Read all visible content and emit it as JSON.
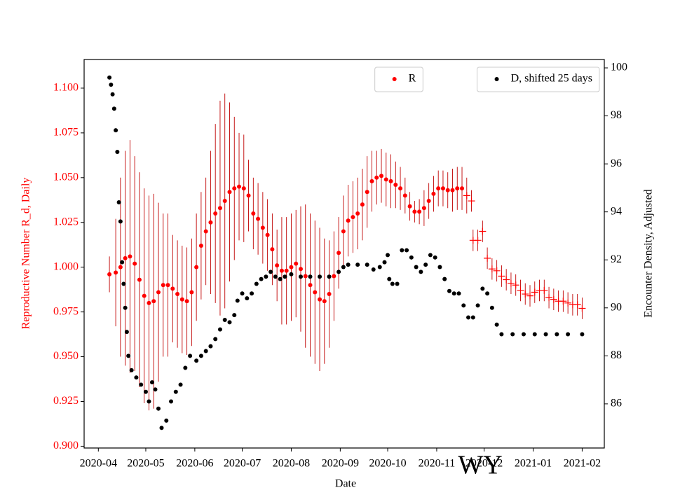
{
  "chart_data": {
    "type": "scatter",
    "xlabel": "Date",
    "ylabel": "Reproductive Number R_d, Daily",
    "y2label": "Encounter Density, Adjusted",
    "annotation": "WY",
    "xlim": [
      "2020-03-23",
      "2021-02-15"
    ],
    "xticks": [
      {
        "value": "2020-04-01",
        "label": "2020-04"
      },
      {
        "value": "2020-05-01",
        "label": "2020-05"
      },
      {
        "value": "2020-06-01",
        "label": "2020-06"
      },
      {
        "value": "2020-07-01",
        "label": "2020-07"
      },
      {
        "value": "2020-08-01",
        "label": "2020-08"
      },
      {
        "value": "2020-09-01",
        "label": "2020-09"
      },
      {
        "value": "2020-10-01",
        "label": "2020-10"
      },
      {
        "value": "2020-11-01",
        "label": "2020-11"
      },
      {
        "value": "2020-12-01",
        "label": "2020-12"
      },
      {
        "value": "2021-01-01",
        "label": "2021-01"
      },
      {
        "value": "2021-02-01",
        "label": "2021-02"
      }
    ],
    "ylim": [
      0.899,
      1.116
    ],
    "yticks": [
      {
        "value": 0.9,
        "label": "0.900"
      },
      {
        "value": 0.925,
        "label": "0.925"
      },
      {
        "value": 0.95,
        "label": "0.950"
      },
      {
        "value": 0.975,
        "label": "0.975"
      },
      {
        "value": 1.0,
        "label": "1.000"
      },
      {
        "value": 1.025,
        "label": "1.025"
      },
      {
        "value": 1.05,
        "label": "1.050"
      },
      {
        "value": 1.075,
        "label": "1.075"
      },
      {
        "value": 1.1,
        "label": "1.100"
      }
    ],
    "ycolor": "#ff0000",
    "y2lim": [
      84.16,
      100.35
    ],
    "y2ticks": [
      86,
      88,
      90,
      92,
      94,
      96,
      98,
      100
    ],
    "series": [
      {
        "name": "R",
        "color": "#ff0000",
        "error_color": "#c00000",
        "marker": "dot",
        "legend": "upper center",
        "x": [
          "2020-04-08",
          "2020-04-12",
          "2020-04-15",
          "2020-04-18",
          "2020-04-21",
          "2020-04-24",
          "2020-04-27",
          "2020-04-30",
          "2020-05-03",
          "2020-05-06",
          "2020-05-09",
          "2020-05-12",
          "2020-05-15",
          "2020-05-18",
          "2020-05-21",
          "2020-05-24",
          "2020-05-27",
          "2020-05-30",
          "2020-06-02",
          "2020-06-05",
          "2020-06-08",
          "2020-06-11",
          "2020-06-14",
          "2020-06-17",
          "2020-06-20",
          "2020-06-23",
          "2020-06-26",
          "2020-06-29",
          "2020-07-02",
          "2020-07-05",
          "2020-07-08",
          "2020-07-11",
          "2020-07-14",
          "2020-07-17",
          "2020-07-20",
          "2020-07-23",
          "2020-07-26",
          "2020-07-29",
          "2020-08-01",
          "2020-08-04",
          "2020-08-07",
          "2020-08-10",
          "2020-08-13",
          "2020-08-16",
          "2020-08-19",
          "2020-08-22",
          "2020-08-25",
          "2020-08-28",
          "2020-08-31",
          "2020-09-03",
          "2020-09-06",
          "2020-09-09",
          "2020-09-12",
          "2020-09-15",
          "2020-09-18",
          "2020-09-21",
          "2020-09-24",
          "2020-09-27",
          "2020-09-30",
          "2020-10-03",
          "2020-10-06",
          "2020-10-09",
          "2020-10-12",
          "2020-10-15",
          "2020-10-18",
          "2020-10-21",
          "2020-10-24",
          "2020-10-27",
          "2020-10-30",
          "2020-11-02",
          "2020-11-05",
          "2020-11-08",
          "2020-11-11",
          "2020-11-14",
          "2020-11-17"
        ],
        "values": [
          0.996,
          0.997,
          1.0,
          1.005,
          1.006,
          1.002,
          0.993,
          0.984,
          0.98,
          0.981,
          0.986,
          0.99,
          0.99,
          0.988,
          0.985,
          0.982,
          0.981,
          0.986,
          1.0,
          1.012,
          1.02,
          1.025,
          1.03,
          1.033,
          1.037,
          1.042,
          1.044,
          1.045,
          1.044,
          1.04,
          1.03,
          1.027,
          1.022,
          1.018,
          1.01,
          1.001,
          0.998,
          0.998,
          1.0,
          1.002,
          0.999,
          0.995,
          0.99,
          0.986,
          0.982,
          0.981,
          0.985,
          0.995,
          1.008,
          1.02,
          1.026,
          1.028,
          1.03,
          1.035,
          1.042,
          1.048,
          1.05,
          1.051,
          1.049,
          1.048,
          1.046,
          1.044,
          1.04,
          1.034,
          1.031,
          1.031,
          1.033,
          1.037,
          1.041,
          1.044,
          1.044,
          1.043,
          1.043,
          1.044,
          1.044
        ],
        "errors": [
          0.01,
          0.03,
          0.05,
          0.06,
          0.065,
          0.06,
          0.06,
          0.06,
          0.06,
          0.06,
          0.05,
          0.04,
          0.04,
          0.03,
          0.03,
          0.03,
          0.03,
          0.03,
          0.03,
          0.03,
          0.03,
          0.04,
          0.05,
          0.06,
          0.06,
          0.05,
          0.04,
          0.03,
          0.03,
          0.02,
          0.02,
          0.02,
          0.02,
          0.02,
          0.02,
          0.02,
          0.03,
          0.03,
          0.03,
          0.03,
          0.035,
          0.04,
          0.04,
          0.04,
          0.04,
          0.035,
          0.03,
          0.025,
          0.02,
          0.02,
          0.02,
          0.02,
          0.02,
          0.02,
          0.02,
          0.017,
          0.015,
          0.015,
          0.015,
          0.015,
          0.013,
          0.012,
          0.01,
          0.008,
          0.006,
          0.007,
          0.01,
          0.01,
          0.01,
          0.01,
          0.01,
          0.01,
          0.012,
          0.012,
          0.012
        ]
      },
      {
        "color": "#ff0000",
        "error_color": "#c00000",
        "marker": "plus",
        "x": [
          "2020-11-20",
          "2020-11-23",
          "2020-11-24",
          "2020-11-27",
          "2020-11-30",
          "2020-12-03",
          "2020-12-06",
          "2020-12-09",
          "2020-12-12",
          "2020-12-15",
          "2020-12-18",
          "2020-12-21",
          "2020-12-24",
          "2020-12-27",
          "2020-12-30",
          "2021-01-02",
          "2021-01-05",
          "2021-01-08",
          "2021-01-11",
          "2021-01-14",
          "2021-01-17",
          "2021-01-20",
          "2021-01-23",
          "2021-01-26",
          "2021-01-29",
          "2021-02-01"
        ],
        "values": [
          1.04,
          1.037,
          1.015,
          1.015,
          1.02,
          1.005,
          0.999,
          0.998,
          0.995,
          0.993,
          0.991,
          0.99,
          0.987,
          0.985,
          0.984,
          0.986,
          0.987,
          0.987,
          0.983,
          0.982,
          0.981,
          0.981,
          0.98,
          0.979,
          0.979,
          0.977
        ],
        "errors": [
          0.01,
          0.006,
          0.006,
          0.006,
          0.006,
          0.006,
          0.006,
          0.006,
          0.006,
          0.006,
          0.006,
          0.006,
          0.006,
          0.006,
          0.006,
          0.006,
          0.006,
          0.006,
          0.006,
          0.006,
          0.006,
          0.006,
          0.006,
          0.006,
          0.006,
          0.006
        ]
      },
      {
        "name": "D, shifted 25 days",
        "color": "#000000",
        "marker": "dot",
        "axis": "y2",
        "legend": "upper right",
        "x": [
          "2020-04-08",
          "2020-04-09",
          "2020-04-10",
          "2020-04-11",
          "2020-04-12",
          "2020-04-13",
          "2020-04-14",
          "2020-04-15",
          "2020-04-16",
          "2020-04-17",
          "2020-04-18",
          "2020-04-19",
          "2020-04-20",
          "2020-04-22",
          "2020-04-25",
          "2020-04-28",
          "2020-05-01",
          "2020-05-03",
          "2020-05-05",
          "2020-05-07",
          "2020-05-09",
          "2020-05-11",
          "2020-05-14",
          "2020-05-17",
          "2020-05-20",
          "2020-05-23",
          "2020-05-26",
          "2020-05-29",
          "2020-06-02",
          "2020-06-05",
          "2020-06-08",
          "2020-06-11",
          "2020-06-14",
          "2020-06-17",
          "2020-06-20",
          "2020-06-23",
          "2020-06-26",
          "2020-06-28",
          "2020-07-01",
          "2020-07-04",
          "2020-07-07",
          "2020-07-10",
          "2020-07-13",
          "2020-07-16",
          "2020-07-19",
          "2020-07-22",
          "2020-07-25",
          "2020-07-28",
          "2020-08-01",
          "2020-08-07",
          "2020-08-13",
          "2020-08-19",
          "2020-08-25",
          "2020-08-31",
          "2020-09-03",
          "2020-09-06",
          "2020-09-12",
          "2020-09-18",
          "2020-09-22",
          "2020-09-26",
          "2020-09-29",
          "2020-10-01",
          "2020-10-02",
          "2020-10-04",
          "2020-10-07",
          "2020-10-10",
          "2020-10-13",
          "2020-10-16",
          "2020-10-19",
          "2020-10-22",
          "2020-10-25",
          "2020-10-28",
          "2020-10-31",
          "2020-11-03",
          "2020-11-06",
          "2020-11-09",
          "2020-11-12",
          "2020-11-15",
          "2020-11-18",
          "2020-11-21",
          "2020-11-24",
          "2020-11-27",
          "2020-11-30",
          "2020-12-03",
          "2020-12-06",
          "2020-12-09",
          "2020-12-12",
          "2020-12-19",
          "2020-12-26",
          "2021-01-02",
          "2021-01-09",
          "2021-01-16",
          "2021-01-23",
          "2021-02-01"
        ],
        "values": [
          99.6,
          99.3,
          98.9,
          98.3,
          97.4,
          96.5,
          94.4,
          93.6,
          91.9,
          91.0,
          90.0,
          89.0,
          88.0,
          87.4,
          87.1,
          86.8,
          86.5,
          86.1,
          86.9,
          86.6,
          85.8,
          85.0,
          85.3,
          86.1,
          86.5,
          86.8,
          87.5,
          88.0,
          87.8,
          88.0,
          88.2,
          88.4,
          88.7,
          89.1,
          89.5,
          89.4,
          89.7,
          90.3,
          90.6,
          90.4,
          90.6,
          91.0,
          91.2,
          91.3,
          91.5,
          91.3,
          91.2,
          91.3,
          91.4,
          91.3,
          91.3,
          91.3,
          91.3,
          91.5,
          91.7,
          91.8,
          91.8,
          91.8,
          91.6,
          91.7,
          91.9,
          92.2,
          91.2,
          91.0,
          91.0,
          92.4,
          92.4,
          92.1,
          91.7,
          91.5,
          91.8,
          92.2,
          92.1,
          91.7,
          91.2,
          90.7,
          90.6,
          90.6,
          90.1,
          89.6,
          89.6,
          90.1,
          90.8,
          90.6,
          90.0,
          89.3,
          88.9,
          88.9,
          88.9,
          88.9,
          88.9,
          88.9,
          88.9,
          88.9
        ]
      }
    ]
  }
}
